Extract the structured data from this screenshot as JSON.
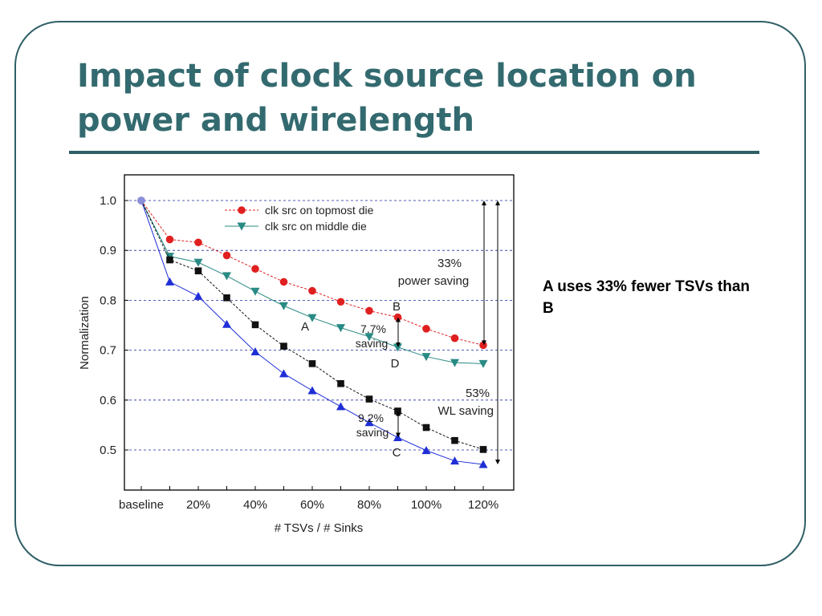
{
  "slide": {
    "title": "Impact of clock source location on power and wirelength",
    "note": "A uses 33% fewer TSVs than B"
  },
  "colors": {
    "title": "#336a6f",
    "frame": "#2f5f66",
    "gridline": "#1f2a9e",
    "series_topmost": "#e02020",
    "series_middle": "#2a8a84",
    "wl_black": "#111111",
    "wl_blue": "#1f2fd6"
  },
  "chart_data": {
    "type": "line",
    "xlabel": "# TSVs / # Sinks",
    "ylabel": "Normalization",
    "categories": [
      "baseline",
      "10%",
      "20%",
      "30%",
      "40%",
      "50%",
      "60%",
      "70%",
      "80%",
      "90%",
      "100%",
      "110%",
      "120%"
    ],
    "x_tick_labels": [
      "baseline",
      "20%",
      "40%",
      "60%",
      "80%",
      "100%",
      "120%"
    ],
    "y_ticks": [
      "0.5",
      "0.6",
      "0.7",
      "0.8",
      "0.9",
      "1.0"
    ],
    "ylim": [
      0.46,
      1.05
    ],
    "grid": "horizontal dashed",
    "legend_position": "top-center",
    "series": [
      {
        "name": "clk src on topmost die",
        "marker": "circle",
        "color": "#e02020",
        "dashed": true,
        "legend": true,
        "values": [
          1.0,
          0.922,
          0.916,
          0.89,
          0.863,
          0.837,
          0.819,
          0.797,
          0.779,
          0.766,
          0.743,
          0.724,
          0.71
        ]
      },
      {
        "name": "clk src on middle die",
        "marker": "triangle-down",
        "color": "#2a8a84",
        "dashed": false,
        "legend": true,
        "values": [
          1.0,
          0.888,
          0.876,
          0.849,
          0.818,
          0.789,
          0.765,
          0.745,
          0.727,
          0.706,
          0.687,
          0.675,
          0.673
        ]
      },
      {
        "marker": "square",
        "color": "#111111",
        "dashed": true,
        "legend": false,
        "values": [
          1.0,
          0.881,
          0.859,
          0.805,
          0.751,
          0.708,
          0.673,
          0.633,
          0.602,
          0.578,
          0.545,
          0.519,
          0.501
        ]
      },
      {
        "marker": "triangle-up",
        "color": "#1f2fd6",
        "dashed": false,
        "legend": false,
        "values": [
          1.0,
          0.837,
          0.808,
          0.752,
          0.697,
          0.653,
          0.619,
          0.587,
          0.555,
          0.525,
          0.499,
          0.478,
          0.471
        ]
      }
    ],
    "annotations": {
      "power_saving_pct": "33%",
      "power_saving_text": "power saving",
      "wl_saving_pct": "53%",
      "wl_saving_text": "WL saving",
      "gap_top_pct": "7.7%",
      "gap_top_text": "saving",
      "gap_bottom_pct": "9.2%",
      "gap_bottom_text": "saving",
      "label_a": "A",
      "label_b": "B",
      "label_c": "C",
      "label_d": "D"
    }
  }
}
